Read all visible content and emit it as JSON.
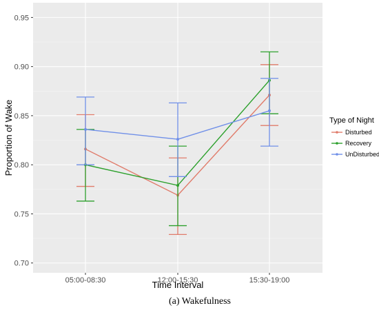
{
  "chart_data": {
    "type": "line",
    "title": "",
    "xlabel": "Time Interval",
    "ylabel": "Proportion of Wake",
    "categories": [
      "05:00-08:30",
      "12:00-15:30",
      "15:30-19:00"
    ],
    "ylim": [
      0.69,
      0.965
    ],
    "yticks": [
      0.7,
      0.75,
      0.8,
      0.85,
      0.9,
      0.95
    ],
    "ytick_labels": [
      "0.70",
      "0.75",
      "0.80",
      "0.85",
      "0.90",
      "0.95"
    ],
    "grid": true,
    "legend": {
      "title": "Type of Night",
      "placement": "right"
    },
    "series": [
      {
        "name": "Disturbed",
        "color": "#E07B6A",
        "values": [
          0.816,
          0.769,
          0.871
        ],
        "lower": [
          0.778,
          0.729,
          0.84
        ],
        "upper": [
          0.851,
          0.807,
          0.902
        ]
      },
      {
        "name": "Recovery",
        "color": "#2CA02C",
        "values": [
          0.8,
          0.779,
          0.886
        ],
        "lower": [
          0.763,
          0.738,
          0.852
        ],
        "upper": [
          0.836,
          0.819,
          0.915
        ]
      },
      {
        "name": "UnDisturbed",
        "color": "#6F8FE8",
        "values": [
          0.836,
          0.826,
          0.855
        ],
        "lower": [
          0.8,
          0.788,
          0.819
        ],
        "upper": [
          0.869,
          0.863,
          0.888
        ]
      }
    ]
  },
  "caption": "(a) Wakefulness"
}
